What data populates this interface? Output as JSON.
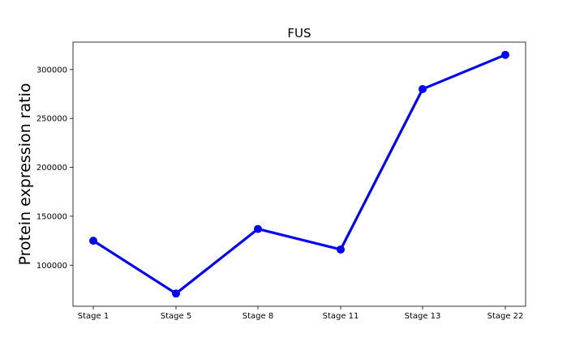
{
  "chart_data": {
    "type": "line",
    "title": "FUS",
    "xlabel": "",
    "ylabel": "Protein expression ratio",
    "categories": [
      "Stage 1",
      "Stage 5",
      "Stage 8",
      "Stage 11",
      "Stage 13",
      "Stage 22"
    ],
    "series": [
      {
        "values": [
          125000,
          71000,
          137000,
          116000,
          280000,
          315000
        ],
        "color": "#0000ff",
        "marker": "circle"
      }
    ],
    "yticks": [
      100000,
      150000,
      200000,
      250000,
      300000
    ],
    "ytick_labels": [
      "100000",
      "150000",
      "200000",
      "250000",
      "300000"
    ],
    "ylim": [
      58000,
      328000
    ],
    "grid": false,
    "legend": "none"
  }
}
